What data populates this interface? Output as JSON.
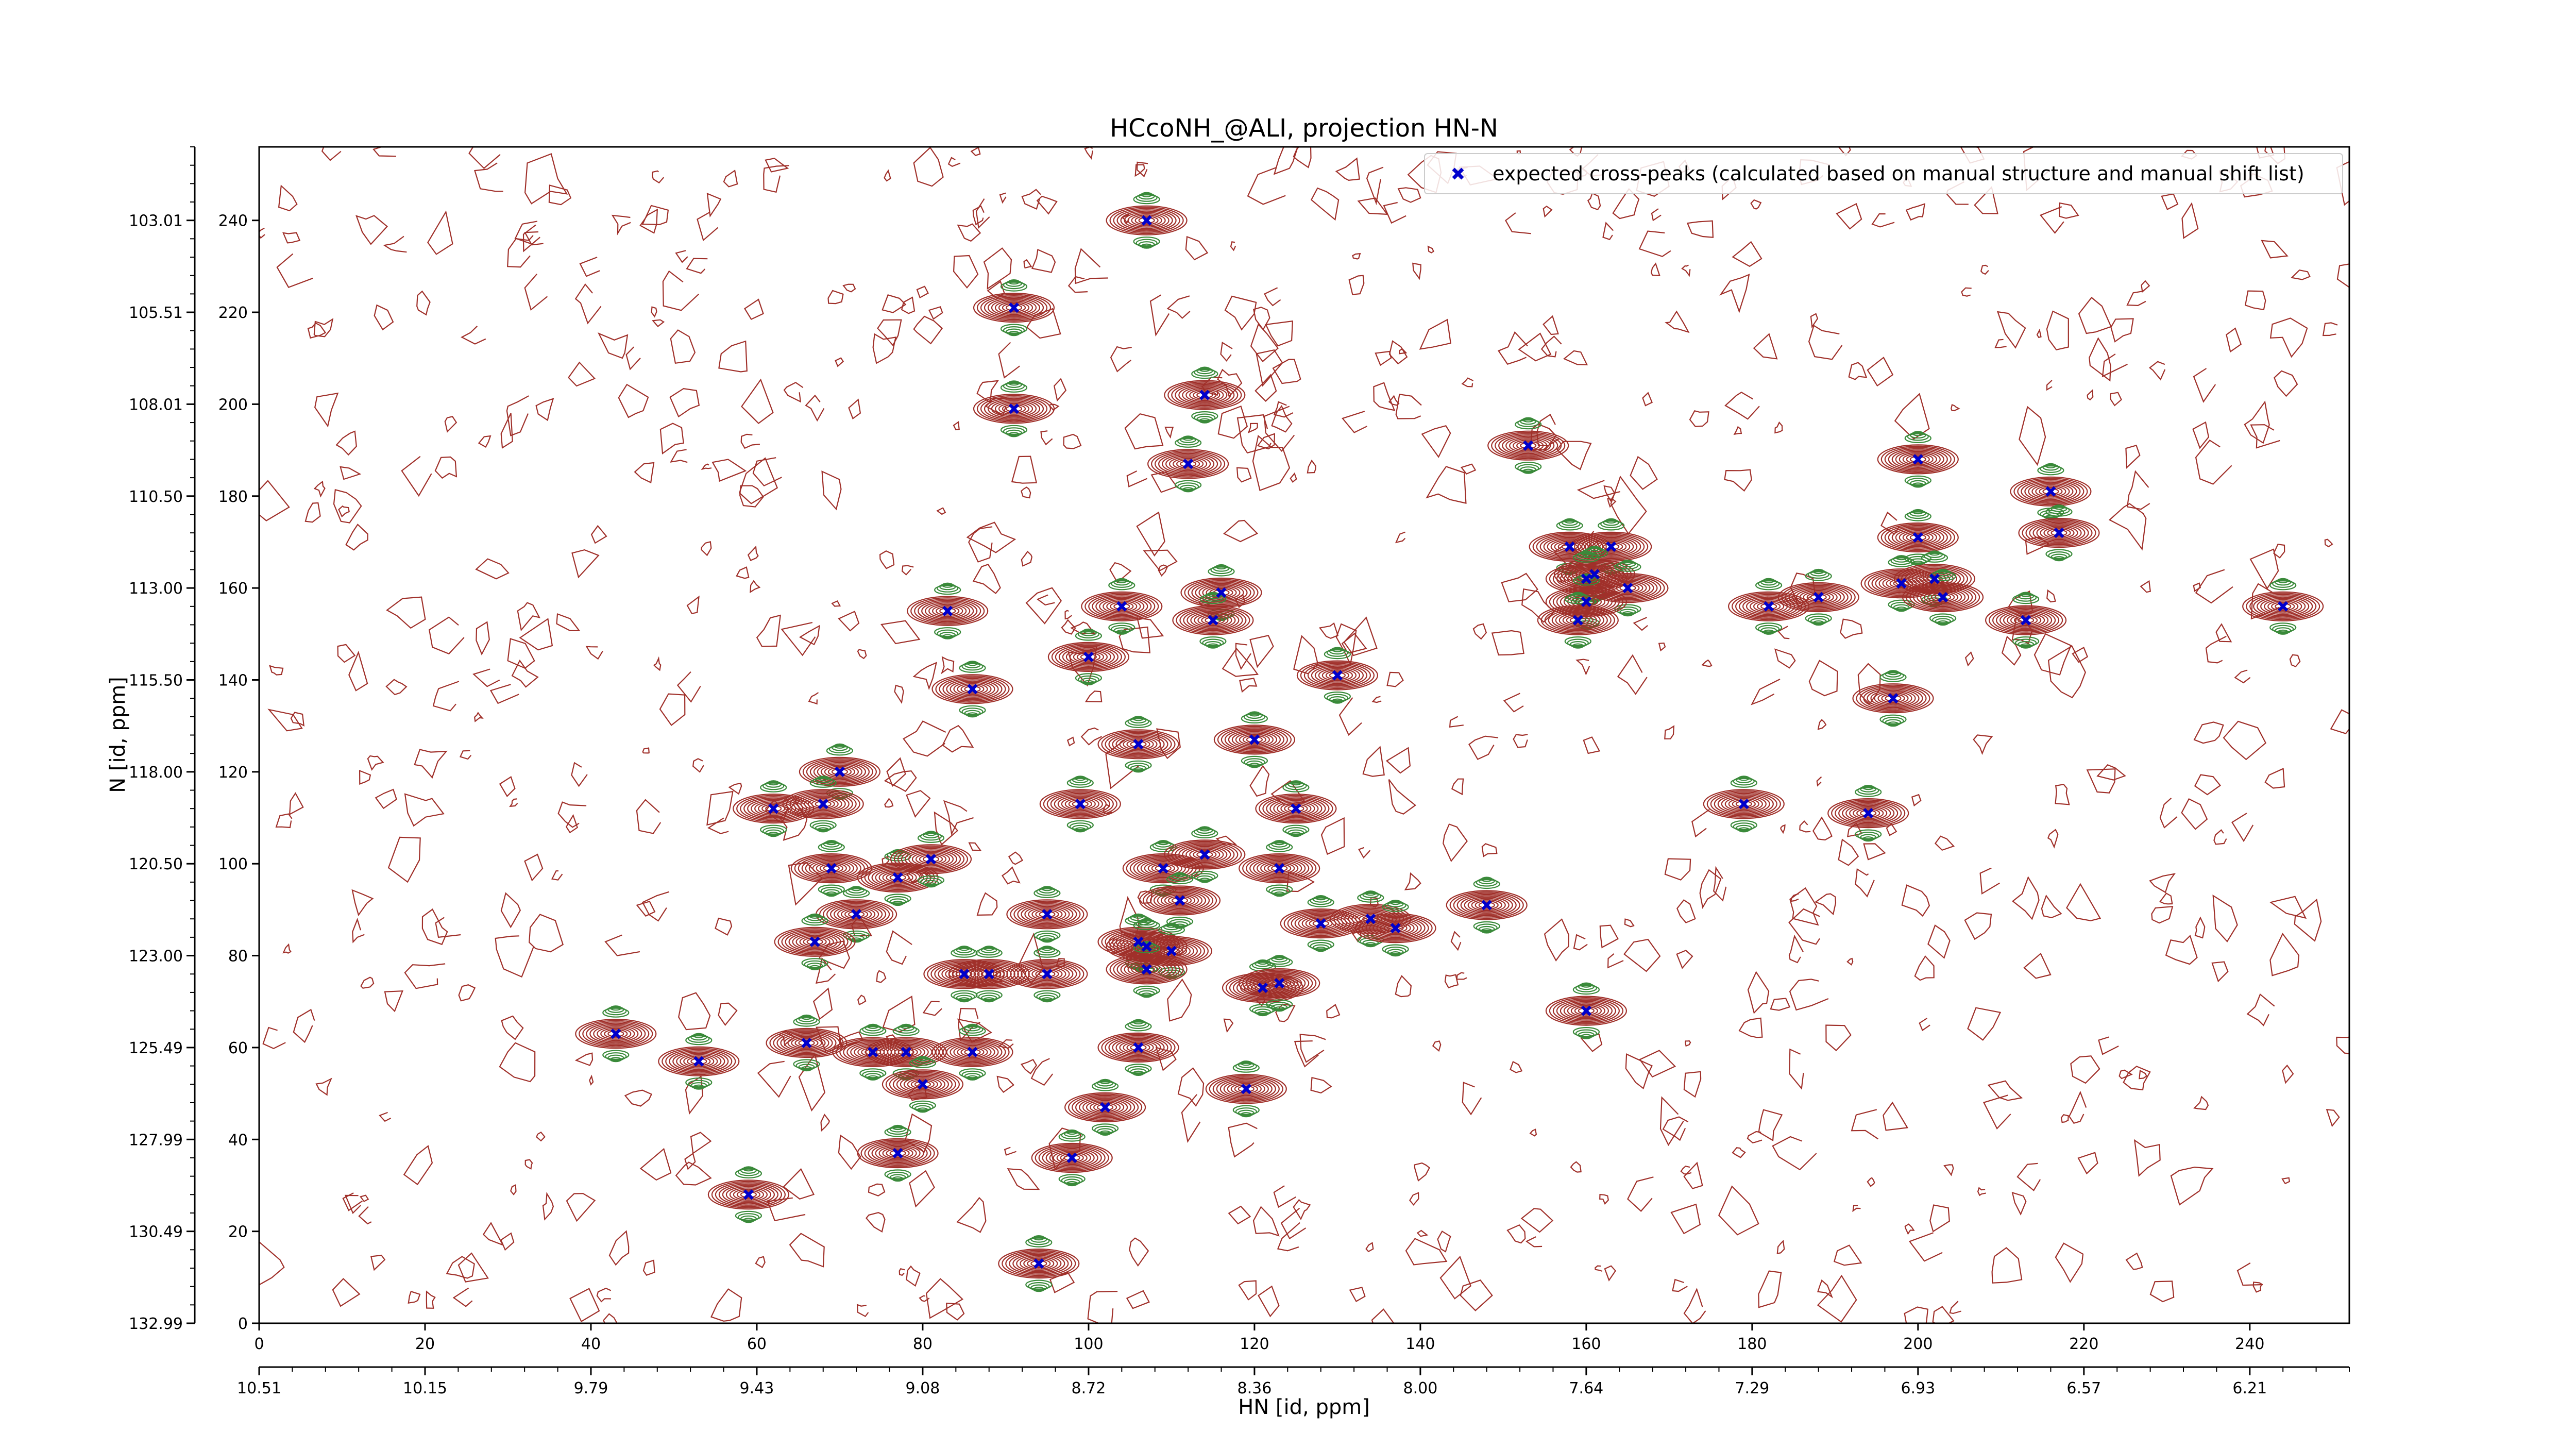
{
  "chart_data": {
    "type": "scatter",
    "title": "HCcoNH_@ALI, projection HN-N",
    "xlabel": "HN [id, ppm]",
    "ylabel": "N [id, ppm]",
    "xlim": [
      0,
      252
    ],
    "ylim": [
      0,
      256
    ],
    "x_ticks_index": [
      "0",
      "20",
      "40",
      "60",
      "80",
      "100",
      "120",
      "140",
      "160",
      "180",
      "200",
      "220",
      "240"
    ],
    "x_ticks_ppm": [
      "10.51",
      "10.15",
      "9.79",
      "9.43",
      "9.08",
      "8.72",
      "8.36",
      "8.00",
      "7.64",
      "7.29",
      "6.93",
      "6.57",
      "6.21"
    ],
    "y_ticks_index": [
      "0",
      "20",
      "40",
      "60",
      "80",
      "100",
      "120",
      "140",
      "160",
      "180",
      "200",
      "220",
      "240"
    ],
    "y_ticks_ppm": [
      "132.99",
      "130.49",
      "127.99",
      "125.49",
      "123.00",
      "120.50",
      "118.00",
      "115.50",
      "113.00",
      "110.50",
      "108.01",
      "105.51",
      "103.01"
    ],
    "legend": {
      "placement": "top-right",
      "entry": "expected cross-peaks (calculated based on manual structure and manual shift list)"
    },
    "grid": false,
    "colors": {
      "positive_contours": "#a0302a",
      "negative_contours": "#3a8a3a",
      "markers": "#0000cc"
    },
    "series": [
      {
        "marker": "blue-x",
        "points": [
          [
            107,
            240
          ],
          [
            91,
            221
          ],
          [
            91,
            199
          ],
          [
            114,
            202
          ],
          [
            112,
            187
          ],
          [
            153,
            191
          ],
          [
            200,
            188
          ],
          [
            216,
            181
          ],
          [
            158,
            169
          ],
          [
            163,
            169
          ],
          [
            161,
            163
          ],
          [
            160,
            162
          ],
          [
            165,
            160
          ],
          [
            160,
            157
          ],
          [
            159,
            153
          ],
          [
            182,
            156
          ],
          [
            188,
            158
          ],
          [
            198,
            161
          ],
          [
            200,
            171
          ],
          [
            202,
            162
          ],
          [
            203,
            158
          ],
          [
            217,
            172
          ],
          [
            213,
            153
          ],
          [
            244,
            156
          ],
          [
            83,
            155
          ],
          [
            104,
            156
          ],
          [
            116,
            159
          ],
          [
            115,
            153
          ],
          [
            100,
            145
          ],
          [
            86,
            138
          ],
          [
            130,
            141
          ],
          [
            197,
            136
          ],
          [
            106,
            126
          ],
          [
            120,
            127
          ],
          [
            70,
            120
          ],
          [
            62,
            112
          ],
          [
            68,
            113
          ],
          [
            99,
            113
          ],
          [
            125,
            112
          ],
          [
            179,
            113
          ],
          [
            194,
            111
          ],
          [
            69,
            99
          ],
          [
            77,
            97
          ],
          [
            81,
            101
          ],
          [
            109,
            99
          ],
          [
            114,
            102
          ],
          [
            123,
            99
          ],
          [
            111,
            92
          ],
          [
            148,
            91
          ],
          [
            72,
            89
          ],
          [
            95,
            89
          ],
          [
            67,
            83
          ],
          [
            106,
            83
          ],
          [
            107,
            82
          ],
          [
            110,
            81
          ],
          [
            128,
            87
          ],
          [
            134,
            88
          ],
          [
            137,
            86
          ],
          [
            85,
            76
          ],
          [
            88,
            76
          ],
          [
            95,
            76
          ],
          [
            107,
            77
          ],
          [
            121,
            73
          ],
          [
            123,
            74
          ],
          [
            43,
            63
          ],
          [
            53,
            57
          ],
          [
            66,
            61
          ],
          [
            74,
            59
          ],
          [
            78,
            59
          ],
          [
            86,
            59
          ],
          [
            106,
            60
          ],
          [
            160,
            68
          ],
          [
            80,
            52
          ],
          [
            119,
            51
          ],
          [
            102,
            47
          ],
          [
            77,
            37
          ],
          [
            98,
            36
          ],
          [
            59,
            28
          ],
          [
            94,
            13
          ]
        ]
      }
    ]
  }
}
